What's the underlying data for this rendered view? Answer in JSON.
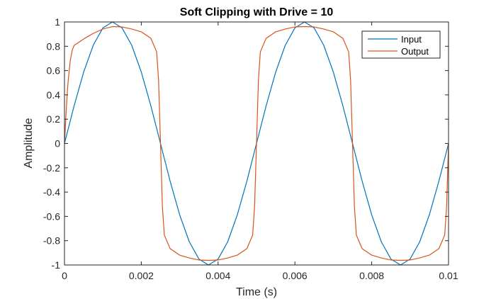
{
  "chart_data": {
    "type": "line",
    "title": "Soft Clipping with Drive = 10",
    "xlabel": "Time (s)",
    "ylabel": "Amplitude",
    "xlim": [
      0,
      0.01
    ],
    "ylim": [
      -1,
      1
    ],
    "x_ticks": [
      "0",
      "0.002",
      "0.004",
      "0.006",
      "0.008",
      "0.01"
    ],
    "y_ticks": [
      "-1",
      "-0.8",
      "-0.6",
      "-0.4",
      "-0.2",
      "0",
      "0.2",
      "0.4",
      "0.6",
      "0.8",
      "1"
    ],
    "grid": false,
    "legend_position": "top-right",
    "series": [
      {
        "name": "Input",
        "color": "#0072BD",
        "x": [
          0,
          0.00025,
          0.0005,
          0.00075,
          0.001,
          0.00125,
          0.0015,
          0.00175,
          0.002,
          0.00225,
          0.0025,
          0.00275,
          0.003,
          0.00325,
          0.0035,
          0.00375,
          0.004,
          0.00425,
          0.0045,
          0.00475,
          0.005,
          0.00525,
          0.0055,
          0.00575,
          0.006,
          0.00625,
          0.0065,
          0.00675,
          0.007,
          0.00725,
          0.0075,
          0.00775,
          0.008,
          0.00825,
          0.0085,
          0.00875,
          0.009,
          0.00925,
          0.0095,
          0.00975,
          0.01
        ],
        "y": [
          0,
          0.309,
          0.588,
          0.809,
          0.951,
          1,
          0.951,
          0.809,
          0.588,
          0.309,
          0,
          -0.309,
          -0.588,
          -0.809,
          -0.951,
          -1,
          -0.951,
          -0.809,
          -0.588,
          -0.309,
          0,
          0.309,
          0.588,
          0.809,
          0.951,
          1,
          0.951,
          0.809,
          0.588,
          0.309,
          0,
          -0.309,
          -0.588,
          -0.809,
          -0.951,
          -1,
          -0.951,
          -0.809,
          -0.588,
          -0.309,
          0
        ]
      },
      {
        "name": "Output",
        "color": "#D95319",
        "x": [
          0,
          1.25e-05,
          2.5e-05,
          3.75e-05,
          5e-05,
          6.25e-05,
          7.5e-05,
          8.75e-05,
          0.0001,
          0.00015,
          0.0002,
          0.00025,
          0.0005,
          0.00075,
          0.001,
          0.00125,
          0.0015,
          0.00175,
          0.002,
          0.00225,
          0.0024,
          0.00245,
          0.0025,
          0.00255,
          0.0026,
          0.00275,
          0.003,
          0.00325,
          0.0035,
          0.00375,
          0.004,
          0.00425,
          0.0045,
          0.00475,
          0.0049,
          0.00495,
          0.005,
          0.00505,
          0.0051,
          0.00525,
          0.0055,
          0.00575,
          0.006,
          0.00625,
          0.0065,
          0.00675,
          0.007,
          0.00725,
          0.0074,
          0.00745,
          0.0075,
          0.00755,
          0.0076,
          0.00775,
          0.008,
          0.00825,
          0.0085,
          0.00875,
          0.009,
          0.00925,
          0.0095,
          0.00975,
          0.0099,
          0.00995,
          0.01
        ],
        "y": [
          0,
          0.077,
          0.153,
          0.227,
          0.297,
          0.363,
          0.424,
          0.479,
          0.529,
          0.681,
          0.765,
          0.807,
          0.86,
          0.906,
          0.942,
          0.962,
          0.959,
          0.942,
          0.919,
          0.865,
          0.754,
          0.521,
          0,
          -0.521,
          -0.754,
          -0.865,
          -0.919,
          -0.942,
          -0.959,
          -0.962,
          -0.959,
          -0.942,
          -0.919,
          -0.865,
          -0.754,
          -0.521,
          0,
          0.521,
          0.754,
          0.865,
          0.919,
          0.942,
          0.959,
          0.962,
          0.959,
          0.942,
          0.919,
          0.865,
          0.754,
          0.521,
          0,
          -0.521,
          -0.754,
          -0.865,
          -0.919,
          -0.942,
          -0.959,
          -0.962,
          -0.959,
          -0.942,
          -0.919,
          -0.865,
          -0.754,
          -0.521,
          0
        ]
      }
    ]
  }
}
